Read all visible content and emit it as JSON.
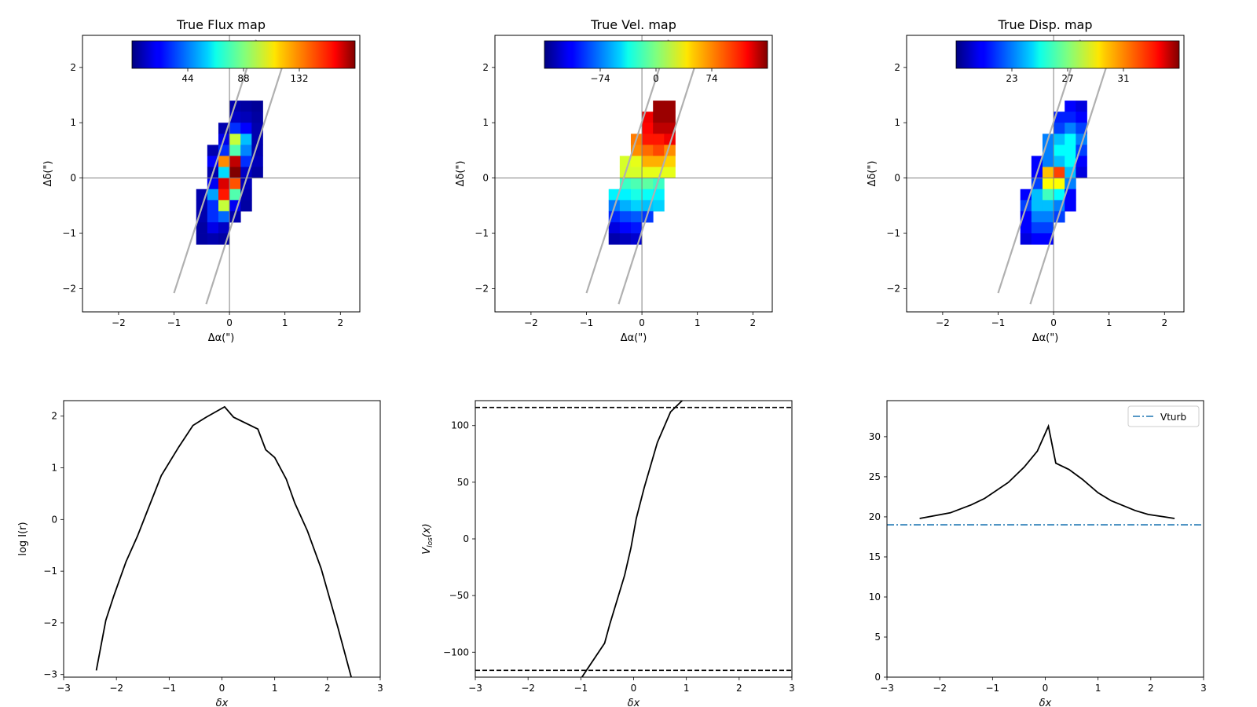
{
  "chart_data": [
    {
      "type": "heatmap",
      "title": "True Flux map",
      "xlabel": "Δα(\")",
      "ylabel": "Δδ(\")",
      "xlim": [
        -2.65,
        2.35
      ],
      "ylim": [
        -2.42,
        2.58
      ],
      "xticks": [
        -2,
        -1,
        0,
        1,
        2
      ],
      "yticks": [
        -2,
        -1,
        0,
        1,
        2
      ],
      "pixel_size": 0.2,
      "colorbar": {
        "vmin": 0,
        "vmax": 176,
        "ticks": [
          44,
          88,
          132
        ],
        "tick_labels": [
          "44",
          "88",
          "132"
        ]
      },
      "slit_lines": [
        [
          [
            -1.0,
            -2.08
          ],
          [
            0.48,
            2.5
          ]
        ],
        [
          [
            -0.42,
            -2.28
          ],
          [
            1.05,
            2.32
          ]
        ]
      ],
      "pixels": [
        [
          0.1,
          1.3,
          8
        ],
        [
          0.3,
          1.3,
          6
        ],
        [
          0.5,
          1.3,
          4
        ],
        [
          0.1,
          1.1,
          12
        ],
        [
          0.3,
          1.1,
          10
        ],
        [
          0.5,
          1.1,
          6
        ],
        [
          -0.1,
          0.9,
          8
        ],
        [
          0.1,
          0.9,
          30
        ],
        [
          0.3,
          0.9,
          22
        ],
        [
          0.5,
          0.9,
          8
        ],
        [
          -0.1,
          0.7,
          18
        ],
        [
          0.1,
          0.7,
          100
        ],
        [
          0.3,
          0.7,
          55
        ],
        [
          0.5,
          0.7,
          8
        ],
        [
          -0.3,
          0.5,
          8
        ],
        [
          -0.1,
          0.5,
          30
        ],
        [
          0.1,
          0.5,
          80
        ],
        [
          0.3,
          0.5,
          45
        ],
        [
          0.5,
          0.5,
          8
        ],
        [
          -0.3,
          0.3,
          22
        ],
        [
          -0.1,
          0.3,
          130
        ],
        [
          0.1,
          0.3,
          165
        ],
        [
          0.3,
          0.3,
          30
        ],
        [
          0.5,
          0.3,
          10
        ],
        [
          -0.3,
          0.1,
          8
        ],
        [
          -0.1,
          0.1,
          60
        ],
        [
          0.1,
          0.1,
          176
        ],
        [
          0.3,
          0.1,
          12
        ],
        [
          0.5,
          0.1,
          6
        ],
        [
          -0.3,
          -0.1,
          20
        ],
        [
          -0.1,
          -0.1,
          160
        ],
        [
          0.1,
          -0.1,
          140
        ],
        [
          0.3,
          -0.1,
          10
        ],
        [
          -0.5,
          -0.3,
          8
        ],
        [
          -0.3,
          -0.3,
          50
        ],
        [
          -0.1,
          -0.3,
          150
        ],
        [
          0.1,
          -0.3,
          80
        ],
        [
          0.3,
          -0.3,
          8
        ],
        [
          -0.5,
          -0.5,
          8
        ],
        [
          -0.3,
          -0.5,
          30
        ],
        [
          -0.1,
          -0.5,
          100
        ],
        [
          0.1,
          -0.5,
          20
        ],
        [
          0.3,
          -0.5,
          6
        ],
        [
          -0.5,
          -0.7,
          8
        ],
        [
          -0.3,
          -0.7,
          30
        ],
        [
          -0.1,
          -0.7,
          40
        ],
        [
          0.1,
          -0.7,
          8
        ],
        [
          -0.5,
          -0.9,
          6
        ],
        [
          -0.3,
          -0.9,
          18
        ],
        [
          -0.1,
          -0.9,
          12
        ],
        [
          -0.5,
          -1.1,
          6
        ],
        [
          -0.3,
          -1.1,
          8
        ],
        [
          -0.1,
          -1.1,
          6
        ]
      ]
    },
    {
      "type": "heatmap",
      "title": "True Vel. map",
      "xlabel": "Δα(\")",
      "ylabel": "Δδ(\")",
      "xlim": [
        -2.65,
        2.35
      ],
      "ylim": [
        -2.42,
        2.58
      ],
      "xticks": [
        -2,
        -1,
        0,
        1,
        2
      ],
      "yticks": [
        -2,
        -1,
        0,
        1,
        2
      ],
      "pixel_size": 0.2,
      "colorbar": {
        "vmin": -148,
        "vmax": 148,
        "ticks": [
          -74,
          0,
          74
        ],
        "tick_labels": [
          "−74",
          "0",
          "74"
        ]
      },
      "slit_lines": [
        [
          [
            -1.0,
            -2.08
          ],
          [
            0.48,
            2.5
          ]
        ],
        [
          [
            -0.42,
            -2.28
          ],
          [
            1.05,
            2.32
          ]
        ]
      ],
      "pixels": [
        [
          0.3,
          1.3,
          140
        ],
        [
          0.5,
          1.3,
          140
        ],
        [
          0.1,
          1.1,
          115
        ],
        [
          0.3,
          1.1,
          140
        ],
        [
          0.5,
          1.1,
          140
        ],
        [
          0.1,
          0.9,
          110
        ],
        [
          0.3,
          0.9,
          130
        ],
        [
          0.5,
          0.9,
          130
        ],
        [
          -0.1,
          0.7,
          75
        ],
        [
          0.1,
          0.7,
          105
        ],
        [
          0.3,
          0.7,
          105
        ],
        [
          0.5,
          0.7,
          115
        ],
        [
          -0.1,
          0.5,
          70
        ],
        [
          0.1,
          0.5,
          80
        ],
        [
          0.3,
          0.5,
          90
        ],
        [
          0.5,
          0.5,
          70
        ],
        [
          -0.3,
          0.3,
          25
        ],
        [
          -0.1,
          0.3,
          30
        ],
        [
          0.1,
          0.3,
          60
        ],
        [
          0.3,
          0.3,
          60
        ],
        [
          0.5,
          0.3,
          50
        ],
        [
          -0.3,
          0.1,
          25
        ],
        [
          -0.1,
          0.1,
          25
        ],
        [
          0.1,
          0.1,
          30
        ],
        [
          0.3,
          0.1,
          30
        ],
        [
          0.5,
          0.1,
          30
        ],
        [
          -0.3,
          -0.1,
          -20
        ],
        [
          -0.1,
          -0.1,
          -15
        ],
        [
          0.1,
          -0.1,
          -10
        ],
        [
          0.3,
          -0.1,
          -20
        ],
        [
          -0.5,
          -0.3,
          -40
        ],
        [
          -0.3,
          -0.3,
          -40
        ],
        [
          -0.1,
          -0.3,
          -30
        ],
        [
          0.1,
          -0.3,
          -35
        ],
        [
          0.3,
          -0.3,
          -40
        ],
        [
          -0.5,
          -0.5,
          -75
        ],
        [
          -0.3,
          -0.5,
          -60
        ],
        [
          -0.1,
          -0.5,
          -50
        ],
        [
          0.1,
          -0.5,
          -55
        ],
        [
          0.3,
          -0.5,
          -50
        ],
        [
          -0.5,
          -0.7,
          -100
        ],
        [
          -0.3,
          -0.7,
          -90
        ],
        [
          -0.1,
          -0.7,
          -85
        ],
        [
          0.1,
          -0.7,
          -95
        ],
        [
          -0.5,
          -0.9,
          -120
        ],
        [
          -0.3,
          -0.9,
          -110
        ],
        [
          -0.1,
          -0.9,
          -105
        ],
        [
          -0.5,
          -1.1,
          -135
        ],
        [
          -0.3,
          -1.1,
          -130
        ],
        [
          -0.1,
          -1.1,
          -125
        ]
      ]
    },
    {
      "type": "heatmap",
      "title": "True Disp. map",
      "xlabel": "Δα(\")",
      "ylabel": "Δδ(\")",
      "xlim": [
        -2.65,
        2.35
      ],
      "ylim": [
        -2.42,
        2.58
      ],
      "xticks": [
        -2,
        -1,
        0,
        1,
        2
      ],
      "yticks": [
        -2,
        -1,
        0,
        1,
        2
      ],
      "pixel_size": 0.2,
      "colorbar": {
        "vmin": 19,
        "vmax": 35,
        "ticks": [
          23,
          27,
          31
        ],
        "tick_labels": [
          "23",
          "27",
          "31"
        ]
      },
      "slit_lines": [
        [
          [
            -1.0,
            -2.08
          ],
          [
            0.48,
            2.5
          ]
        ],
        [
          [
            -0.42,
            -2.28
          ],
          [
            1.05,
            2.32
          ]
        ]
      ],
      "pixels": [
        [
          0.3,
          1.3,
          21
        ],
        [
          0.5,
          1.3,
          20.5
        ],
        [
          0.1,
          1.1,
          21.5
        ],
        [
          0.3,
          1.1,
          21.5
        ],
        [
          0.5,
          1.1,
          21
        ],
        [
          0.1,
          0.9,
          22
        ],
        [
          0.3,
          0.9,
          23
        ],
        [
          0.5,
          0.9,
          22
        ],
        [
          -0.1,
          0.7,
          23
        ],
        [
          0.1,
          0.7,
          24
        ],
        [
          0.3,
          0.7,
          25
        ],
        [
          0.5,
          0.7,
          23
        ],
        [
          -0.1,
          0.5,
          23
        ],
        [
          0.1,
          0.5,
          25
        ],
        [
          0.3,
          0.5,
          25
        ],
        [
          0.5,
          0.5,
          22
        ],
        [
          -0.3,
          0.3,
          21
        ],
        [
          -0.1,
          0.3,
          23
        ],
        [
          0.1,
          0.3,
          24
        ],
        [
          0.3,
          0.3,
          25
        ],
        [
          0.5,
          0.3,
          21
        ],
        [
          -0.3,
          0.1,
          21
        ],
        [
          -0.1,
          0.1,
          30
        ],
        [
          0.1,
          0.1,
          32
        ],
        [
          0.3,
          0.1,
          24
        ],
        [
          0.5,
          0.1,
          20.5
        ],
        [
          -0.3,
          -0.1,
          22
        ],
        [
          -0.1,
          -0.1,
          29
        ],
        [
          0.1,
          -0.1,
          29
        ],
        [
          0.3,
          -0.1,
          23
        ],
        [
          -0.5,
          -0.3,
          21
        ],
        [
          -0.3,
          -0.3,
          24
        ],
        [
          -0.1,
          -0.3,
          26
        ],
        [
          0.1,
          -0.3,
          25
        ],
        [
          0.3,
          -0.3,
          21
        ],
        [
          -0.5,
          -0.5,
          22
        ],
        [
          -0.3,
          -0.5,
          24
        ],
        [
          -0.1,
          -0.5,
          24
        ],
        [
          0.1,
          -0.5,
          23
        ],
        [
          0.3,
          -0.5,
          21
        ],
        [
          -0.5,
          -0.7,
          21
        ],
        [
          -0.3,
          -0.7,
          23
        ],
        [
          -0.1,
          -0.7,
          23
        ],
        [
          0.1,
          -0.7,
          22
        ],
        [
          -0.5,
          -0.9,
          21
        ],
        [
          -0.3,
          -0.9,
          22
        ],
        [
          -0.1,
          -0.9,
          22
        ],
        [
          -0.5,
          -1.1,
          20.5
        ],
        [
          -0.3,
          -1.1,
          21
        ],
        [
          -0.1,
          -1.1,
          21
        ]
      ]
    },
    {
      "type": "line",
      "xlabel": "δx",
      "ylabel": "log I(r)",
      "xlim": [
        -3,
        3
      ],
      "ylim": [
        -3.05,
        2.3
      ],
      "xticks": [
        -3,
        -2,
        -1,
        0,
        1,
        2,
        3
      ],
      "yticks": [
        -3,
        -2,
        -1,
        0,
        1,
        2
      ],
      "ytick_labels": [
        "−3",
        "−2",
        "−1",
        "0",
        "1",
        "2"
      ],
      "series": [
        {
          "color": "#000000",
          "style": "solid",
          "x": [
            -2.38,
            -2.2,
            -2.05,
            -1.82,
            -1.6,
            -1.42,
            -1.15,
            -0.82,
            -0.55,
            -0.3,
            0.05,
            0.22,
            0.68,
            0.83,
            1.0,
            1.22,
            1.38,
            1.62,
            1.88,
            2.2,
            2.45
          ],
          "y": [
            -2.92,
            -1.95,
            -1.48,
            -0.82,
            -0.32,
            0.15,
            0.85,
            1.4,
            1.82,
            1.98,
            2.18,
            1.98,
            1.75,
            1.35,
            1.2,
            0.78,
            0.32,
            -0.22,
            -0.95,
            -2.1,
            -3.05
          ]
        }
      ]
    },
    {
      "type": "line",
      "xlabel": "δx",
      "ylabel": "V_los(x)",
      "xlim": [
        -3,
        3
      ],
      "ylim": [
        -122,
        122
      ],
      "xticks": [
        -3,
        -2,
        -1,
        0,
        1,
        2,
        3
      ],
      "yticks": [
        -100,
        -50,
        0,
        50,
        100
      ],
      "ytick_labels": [
        "−100",
        "−50",
        "0",
        "50",
        "100"
      ],
      "series": [
        {
          "color": "#000000",
          "style": "solid",
          "x": [
            -0.98,
            -0.55,
            -0.45,
            -0.3,
            -0.17,
            -0.05,
            0.05,
            0.2,
            0.45,
            0.7,
            0.92
          ],
          "y": [
            -122,
            -92,
            -75,
            -52,
            -32,
            -8,
            18,
            45,
            85,
            112,
            122
          ]
        },
        {
          "color": "#000000",
          "style": "dashed",
          "x": [
            -3,
            3
          ],
          "y": [
            116,
            116
          ]
        },
        {
          "color": "#000000",
          "style": "dashed",
          "x": [
            -3,
            3
          ],
          "y": [
            -116,
            -116
          ]
        }
      ]
    },
    {
      "type": "line",
      "xlabel": "δx",
      "ylabel": "",
      "xlim": [
        -3,
        3
      ],
      "ylim": [
        0,
        34.5
      ],
      "xticks": [
        -3,
        -2,
        -1,
        0,
        1,
        2,
        3
      ],
      "yticks": [
        0,
        5,
        10,
        15,
        20,
        25,
        30
      ],
      "legend": {
        "position": "top-right",
        "entries": [
          "Vturb"
        ]
      },
      "series": [
        {
          "color": "#000000",
          "style": "solid",
          "x": [
            -2.38,
            -1.8,
            -1.4,
            -1.15,
            -0.7,
            -0.4,
            -0.15,
            0.06,
            0.2,
            0.45,
            0.7,
            1.0,
            1.25,
            1.7,
            1.95,
            2.25,
            2.45
          ],
          "y": [
            19.8,
            20.5,
            21.5,
            22.3,
            24.3,
            26.2,
            28.2,
            31.3,
            26.7,
            25.9,
            24.7,
            23.0,
            22.0,
            20.8,
            20.3,
            20.0,
            19.8
          ]
        },
        {
          "name": "Vturb",
          "color": "#1f77b4",
          "style": "dashdot",
          "x": [
            -3,
            3
          ],
          "y": [
            19.0,
            19.0
          ]
        }
      ]
    }
  ]
}
